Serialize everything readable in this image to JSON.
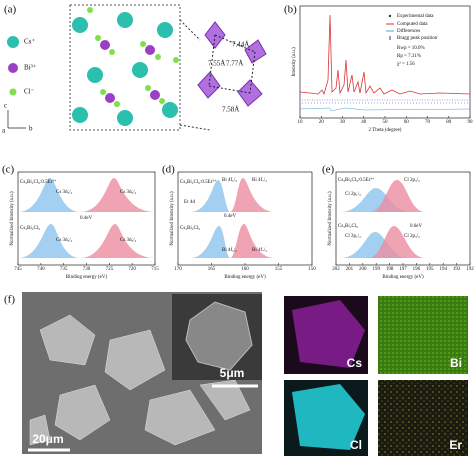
{
  "panels": {
    "a": {
      "label": "(a)",
      "legend": [
        "Cs⁺",
        "Bi³⁺",
        "Cl⁻"
      ],
      "axes": [
        "c",
        "a",
        "b"
      ],
      "distances": [
        "7.44Å",
        "7.55Å",
        "7.77Å",
        "7.58Å"
      ]
    },
    "b": {
      "label": "(b)",
      "legend": [
        "Experimental data",
        "Computed data",
        "Differences",
        "Bragg peak position"
      ],
      "stats": [
        "Rwp = 10.0%",
        "Rp = 7.31%",
        "χ² = 1.56"
      ],
      "xlabel": "2 Theta (degree)",
      "ylabel": "Intensity (a.u.)",
      "xlim": [
        10,
        90
      ],
      "xticks": [
        10,
        20,
        30,
        40,
        50,
        60,
        70,
        80,
        90
      ]
    },
    "c": {
      "label": "(c)",
      "samples": [
        "Cs₃Bi₂Cl₉:0.5Er³⁺",
        "Cs₃Bi₂Cl₉"
      ],
      "peaks": [
        "Cs 3d₃/₂",
        "Cs 3d₅/₂",
        "Cs 3d₃/₂",
        "Cs 3d₅/₂"
      ],
      "shift": "0.4eV",
      "xlabel": "Binding energy (eV)",
      "ylabel": "Normalized Intensity (a.u.)",
      "xlim": [
        745,
        715
      ],
      "xticks": [
        745,
        740,
        735,
        730,
        725,
        720,
        715
      ]
    },
    "d": {
      "label": "(d)",
      "samples": [
        "Cs₃Bi₂Cl₉:0.5Er³⁺",
        "Cs₃Bi₂Cl₉"
      ],
      "peaks": [
        "Bi 4f₅/₂",
        "Bi 4f₇/₂",
        "Bi 4f₅/₂",
        "Bi 4f₇/₂"
      ],
      "extra": "Er 4d",
      "shift": "0.4eV",
      "xlabel": "Binding energy (eV)",
      "ylabel": "Normalized Intensity (a.u.)",
      "xlim": [
        170,
        150
      ],
      "xticks": [
        170,
        165,
        160,
        155,
        150
      ]
    },
    "e": {
      "label": "(e)",
      "samples": [
        "Cs₃Bi₂Cl₉:0.5Er³⁺",
        "Cs₃Bi₂Cl₉"
      ],
      "peaks": [
        "Cl 2p₁/₂",
        "Cl 2p₃/₂",
        "Cl 2p₁/₂",
        "Cl 2p₃/₂"
      ],
      "shift": "0.6eV",
      "xlabel": "Binding energy (eV)",
      "ylabel": "Normalized Intensity (a.u.)",
      "xlim": [
        202,
        192
      ],
      "xticks": [
        202,
        201,
        200,
        199,
        198,
        197,
        196,
        195,
        194,
        193,
        192
      ]
    },
    "f": {
      "label": "(f)",
      "scalebars": [
        "5μm",
        "20μm"
      ],
      "maps": [
        "Cs",
        "Bi",
        "Cl",
        "Er"
      ]
    }
  }
}
